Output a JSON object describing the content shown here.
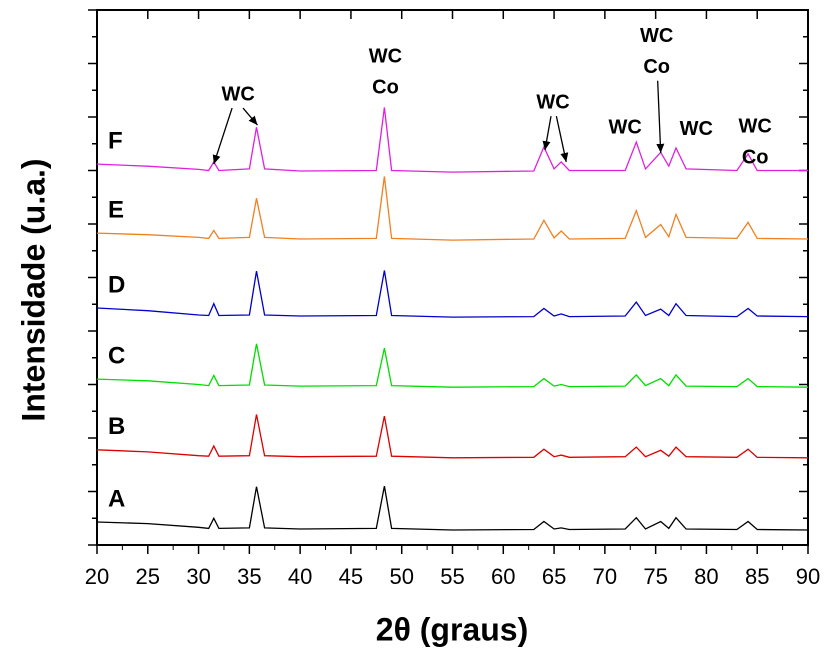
{
  "chart_data": {
    "type": "line",
    "x_label": "2θ (graus)",
    "y_label": "Intensidade (u.a.)",
    "x": [
      20,
      25,
      30,
      31,
      31.5,
      32,
      35,
      35.7,
      36.5,
      40,
      47.5,
      48.3,
      49,
      55,
      63,
      64,
      65,
      65.7,
      66.5,
      72,
      73.1,
      74,
      75.5,
      76.3,
      77,
      78,
      83,
      84.1,
      85,
      90
    ],
    "series": [
      {
        "name": "A",
        "color": "#000000",
        "values": [
          4.3,
          4,
          3.3,
          3.1,
          5,
          3.1,
          3.2,
          10.9,
          3.2,
          3,
          3.1,
          11,
          3.1,
          2.8,
          2.9,
          4.4,
          3,
          3.2,
          2.9,
          3,
          5.1,
          3,
          4.4,
          3.1,
          5.1,
          3,
          2.9,
          4.4,
          2.9,
          2.8
        ]
      },
      {
        "name": "B",
        "color": "#dd0000",
        "values": [
          17.8,
          17.4,
          16.7,
          16.6,
          18.5,
          16.6,
          16.7,
          24.4,
          16.7,
          16.5,
          16.6,
          24.1,
          16.6,
          16.3,
          16.4,
          17.9,
          16.5,
          16.8,
          16.4,
          16.5,
          18.3,
          16.5,
          17.7,
          16.6,
          18.3,
          16.5,
          16.4,
          17.9,
          16.4,
          16.3
        ]
      },
      {
        "name": "C",
        "color": "#00dd00",
        "values": [
          31,
          30.7,
          30,
          29.8,
          31.7,
          29.8,
          29.9,
          37.6,
          29.9,
          29.7,
          29.8,
          36.8,
          29.8,
          29.5,
          29.6,
          31.1,
          29.7,
          30,
          29.6,
          29.7,
          31.8,
          29.8,
          31.1,
          29.8,
          31.8,
          29.7,
          29.6,
          31.1,
          29.6,
          29.5
        ]
      },
      {
        "name": "D",
        "color": "#0000cc",
        "values": [
          44.3,
          43.8,
          43,
          42.9,
          45.1,
          42.9,
          43,
          51.2,
          43,
          42.8,
          42.9,
          51.3,
          42.9,
          42.6,
          42.7,
          44.2,
          42.8,
          43.2,
          42.7,
          42.8,
          45.4,
          42.9,
          44.1,
          42.9,
          45.1,
          42.9,
          42.7,
          44.2,
          42.8,
          42.7
        ]
      },
      {
        "name": "E",
        "color": "#f08020",
        "values": [
          58.3,
          58,
          57.5,
          57.3,
          58.8,
          57.3,
          57.5,
          64.8,
          57.5,
          57.2,
          57.3,
          68.9,
          57.3,
          57,
          57.2,
          60.7,
          57.4,
          58.7,
          57.2,
          57.3,
          62.5,
          57.5,
          59.9,
          57.6,
          61.8,
          57.5,
          57.3,
          60.3,
          57.3,
          57.2
        ]
      },
      {
        "name": "F",
        "color": "#e020e0",
        "values": [
          71.2,
          70.8,
          70.2,
          70,
          71.6,
          70,
          70.3,
          78.1,
          70.3,
          69.9,
          70,
          81.8,
          70,
          69.7,
          69.9,
          74.4,
          70.3,
          71.6,
          70,
          70,
          75.3,
          70.3,
          73.4,
          70.8,
          74.2,
          70.3,
          70,
          73.1,
          70,
          70
        ]
      }
    ],
    "annotations": [
      {
        "lines": [
          "WC"
        ],
        "x": 33.9,
        "y": 84.1,
        "arrows": [
          [
            31.5,
            71.2
          ],
          [
            35.8,
            78.5
          ]
        ]
      },
      {
        "lines": [
          "WC",
          "Co"
        ],
        "x": 48.4,
        "y": 91.2,
        "arrows": []
      },
      {
        "lines": [
          "WC"
        ],
        "x": 64.9,
        "y": 82.6,
        "arrows": [
          [
            64.1,
            73.8
          ],
          [
            66.2,
            71.6
          ]
        ]
      },
      {
        "lines": [
          "WC"
        ],
        "x": 72,
        "y": 77.9,
        "arrows": []
      },
      {
        "lines": [
          "WC",
          "Co"
        ],
        "x": 75.1,
        "y": 95,
        "arrows": [
          [
            75.5,
            73.3
          ]
        ]
      },
      {
        "lines": [
          "WC"
        ],
        "x": 79,
        "y": 77.6,
        "arrows": []
      },
      {
        "lines": [
          "WC",
          "Co"
        ],
        "x": 84.8,
        "y": 78.1,
        "arrows": []
      }
    ],
    "xlim": [
      20,
      90
    ],
    "xticks": [
      20,
      25,
      30,
      35,
      40,
      45,
      50,
      55,
      60,
      65,
      70,
      75,
      80,
      85,
      90
    ],
    "ylim": [
      0,
      100
    ],
    "yticks": [
      0,
      5,
      10,
      15,
      20,
      25,
      30,
      35,
      40,
      45,
      50,
      55,
      60,
      65,
      70,
      75,
      80,
      85,
      90,
      95,
      100
    ]
  }
}
